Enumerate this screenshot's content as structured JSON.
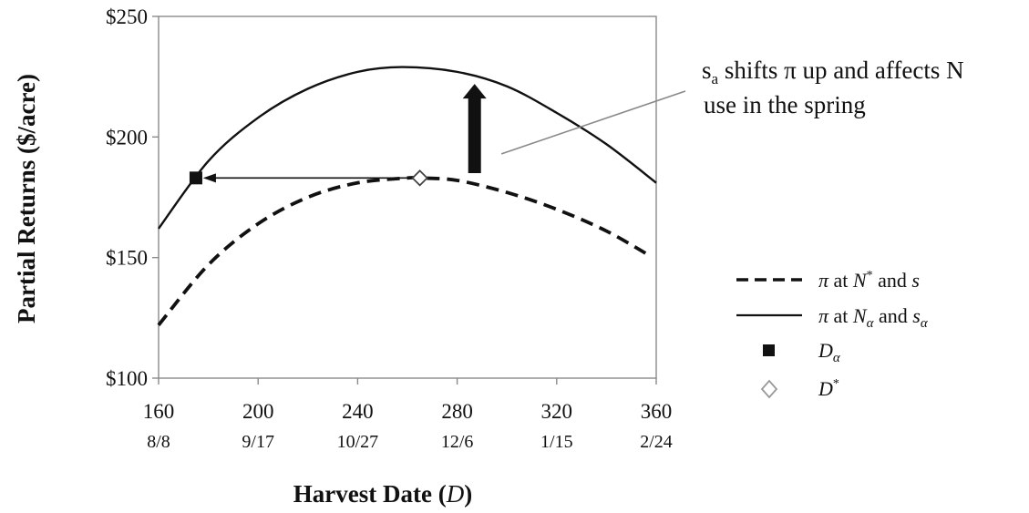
{
  "chart_data": {
    "type": "line",
    "ylabel": "Partial Returns ($/acre)",
    "xlabel_main": "Harvest Date (",
    "xlabel_var": "D",
    "xlabel_close": ")",
    "xlim": [
      160,
      360
    ],
    "ylim": [
      100,
      250
    ],
    "x_ticks": [
      160,
      200,
      240,
      280,
      320,
      360
    ],
    "x_tick_dates": [
      "8/8",
      "9/17",
      "10/27",
      "12/6",
      "1/15",
      "2/24"
    ],
    "y_ticks": [
      100,
      150,
      200,
      250
    ],
    "y_tick_labels": [
      "$100",
      "$150",
      "$200",
      "$250"
    ],
    "series": [
      {
        "key": "base",
        "style": "dashed",
        "x": [
          160,
          180,
          200,
          220,
          240,
          260,
          265,
          280,
          300,
          320,
          340,
          357
        ],
        "y": [
          122,
          147,
          164,
          175,
          181,
          183,
          183,
          182,
          177,
          170,
          161,
          151
        ]
      },
      {
        "key": "alt",
        "style": "solid",
        "x": [
          160,
          180,
          200,
          220,
          240,
          258,
          280,
          300,
          320,
          340,
          360
        ],
        "y": [
          162,
          190,
          208,
          220,
          227,
          229,
          227,
          221,
          210,
          197,
          181
        ]
      }
    ],
    "points": [
      {
        "key": "D_a",
        "marker": "filled-square",
        "x": 175,
        "y": 183
      },
      {
        "key": "D_star",
        "marker": "open-diamond",
        "x": 265,
        "y": 183
      }
    ],
    "arrows": [
      {
        "key": "horizontal",
        "from": [
          265,
          183
        ],
        "to": [
          175,
          183
        ]
      },
      {
        "key": "shift-up",
        "from_x": 287,
        "from_y": 185,
        "to_y": 222
      }
    ],
    "annotation": {
      "line1_prefix": "s",
      "line1_sub": "a",
      "line1_rest": " shifts π up and affects N",
      "line2": "use in the spring",
      "pointer_to": [
        289,
        193
      ]
    },
    "legend": [
      {
        "marker": "dashed-line",
        "pi": "π",
        "at": " at ",
        "v1": "N",
        "v1_sup": "*",
        "and": " and ",
        "v2": "s",
        "v2_sub": ""
      },
      {
        "marker": "solid-line",
        "pi": "π",
        "at": " at ",
        "v1": "N",
        "v1_sub": "α",
        "and": " and ",
        "v2": "s",
        "v2_sub": "α"
      },
      {
        "marker": "filled-square",
        "v1": "D",
        "v1_sub": "α"
      },
      {
        "marker": "open-diamond",
        "v1": "D",
        "v1_sup": "*"
      }
    ]
  }
}
